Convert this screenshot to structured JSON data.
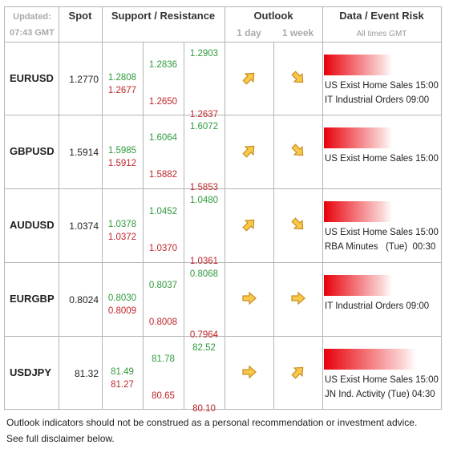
{
  "header": {
    "updated": "Updated:",
    "time": "07:43 GMT",
    "spot": "Spot",
    "support_resistance": "Support / Resistance",
    "outlook": "Outlook",
    "day": "1 day",
    "week": "1 week",
    "data_event_risk": "Data / Event Risk",
    "all_times": "All times GMT"
  },
  "table": {
    "rows": [
      {
        "pair": "EURUSD",
        "spot": "1.2770",
        "levels": [
          [
            "1.2808",
            "1.2677"
          ],
          [
            "1.2836",
            "1.2650"
          ],
          [
            "1.2903",
            "1.2637"
          ]
        ],
        "events": [
          "US Exist Home Sales 15:00",
          "IT Industrial Orders 09:00"
        ]
      },
      {
        "pair": "GBPUSD",
        "spot": "1.5914",
        "levels": [
          [
            "1.5985",
            "1.5912"
          ],
          [
            "1.6064",
            "1.5882"
          ],
          [
            "1.6072",
            "1.5853"
          ]
        ],
        "events": [
          "US Exist Home Sales 15:00"
        ]
      },
      {
        "pair": "AUDUSD",
        "spot": "1.0374",
        "levels": [
          [
            "1.0378",
            "1.0372"
          ],
          [
            "1.0452",
            "1.0370"
          ],
          [
            "1.0480",
            "1.0361"
          ]
        ],
        "events": [
          "US Exist Home Sales 15:00",
          "RBA Minutes   (Tue)  00:30"
        ]
      },
      {
        "pair": "EURGBP",
        "spot": "0.8024",
        "levels": [
          [
            "0.8030",
            "0.8009"
          ],
          [
            "0.8037",
            "0.8008"
          ],
          [
            "0.8068",
            "0.7964"
          ]
        ],
        "events": [
          "IT Industrial Orders 09:00"
        ]
      },
      {
        "pair": "USDJPY",
        "spot": "81.32",
        "levels": [
          [
            "81.49",
            "81.27"
          ],
          [
            "81.78",
            "80.65"
          ],
          [
            "82.52",
            "80.10"
          ]
        ],
        "events": [
          "US Exist Home Sales 15:00",
          "JN Ind. Activity (Tue) 04:30"
        ]
      }
    ]
  },
  "footer": [
    "Outlook indicators should not be construed as a personal recommendation or investment advice.",
    "See full disclaimer below."
  ]
}
